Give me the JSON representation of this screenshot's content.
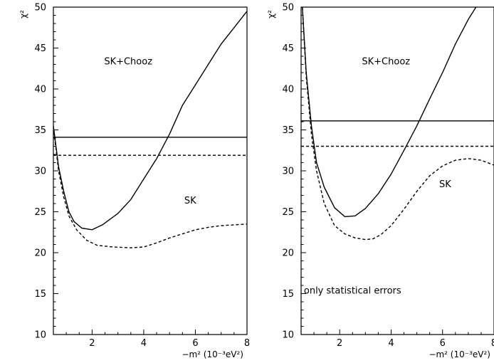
{
  "chart_data": [
    {
      "type": "line",
      "title": "",
      "xlabel": "−m² (10⁻³eV²)",
      "ylabel": "χ²",
      "xlim": [
        0.5,
        8
      ],
      "ylim": [
        10,
        50
      ],
      "xticks": [
        2,
        4,
        6,
        8
      ],
      "yticks": [
        10,
        15,
        20,
        25,
        30,
        35,
        40,
        45,
        50
      ],
      "grid": false,
      "annotations": [
        {
          "text": "SK+Chooz",
          "x": 3.4,
          "y": 43.0
        },
        {
          "text": "SK",
          "x": 5.8,
          "y": 26.0
        }
      ],
      "series": [
        {
          "name": "SK+Chooz",
          "style": "solid",
          "points": [
            [
              0.5,
              35.5
            ],
            [
              0.7,
              30.5
            ],
            [
              0.9,
              27.5
            ],
            [
              1.1,
              25.0
            ],
            [
              1.3,
              23.8
            ],
            [
              1.6,
              23.0
            ],
            [
              2.0,
              22.8
            ],
            [
              2.4,
              23.4
            ],
            [
              3.0,
              24.8
            ],
            [
              3.5,
              26.5
            ],
            [
              4.0,
              29.0
            ],
            [
              4.5,
              31.5
            ],
            [
              5.0,
              34.5
            ],
            [
              5.5,
              38.0
            ],
            [
              6.0,
              40.5
            ],
            [
              6.5,
              43.0
            ],
            [
              7.0,
              45.5
            ],
            [
              7.5,
              47.5
            ],
            [
              8.0,
              49.5
            ]
          ]
        },
        {
          "name": "SK",
          "style": "dashed",
          "points": [
            [
              0.5,
              35.3
            ],
            [
              0.7,
              30.0
            ],
            [
              0.9,
              26.8
            ],
            [
              1.1,
              24.5
            ],
            [
              1.4,
              22.8
            ],
            [
              1.8,
              21.5
            ],
            [
              2.2,
              20.9
            ],
            [
              2.8,
              20.7
            ],
            [
              3.5,
              20.6
            ],
            [
              4.0,
              20.7
            ],
            [
              4.5,
              21.2
            ],
            [
              5.0,
              21.8
            ],
            [
              5.5,
              22.3
            ],
            [
              6.0,
              22.8
            ],
            [
              6.5,
              23.1
            ],
            [
              7.0,
              23.3
            ],
            [
              7.5,
              23.4
            ],
            [
              8.0,
              23.5
            ]
          ]
        },
        {
          "name": "",
          "style": "solid",
          "points": [
            [
              0.5,
              34.1
            ],
            [
              8.0,
              34.1
            ]
          ]
        },
        {
          "name": "",
          "style": "dashed",
          "points": [
            [
              0.5,
              31.9
            ],
            [
              8.0,
              31.9
            ]
          ]
        }
      ]
    },
    {
      "type": "line",
      "title": "",
      "xlabel": "−m² (10⁻³eV²)",
      "ylabel": "χ²",
      "xlim": [
        0.5,
        8
      ],
      "ylim": [
        10,
        50
      ],
      "xticks": [
        2,
        4,
        6,
        8
      ],
      "yticks": [
        10,
        15,
        20,
        25,
        30,
        35,
        40,
        45,
        50
      ],
      "grid": false,
      "annotations": [
        {
          "text": "SK+Chooz",
          "x": 3.8,
          "y": 43.0
        },
        {
          "text": "SK",
          "x": 6.1,
          "y": 28.0
        },
        {
          "text": "only statistical errors",
          "x": 2.5,
          "y": 15.0
        }
      ],
      "series": [
        {
          "name": "SK+Chooz",
          "style": "solid",
          "points": [
            [
              0.55,
              50.0
            ],
            [
              0.7,
              42.0
            ],
            [
              0.9,
              35.5
            ],
            [
              1.1,
              31.0
            ],
            [
              1.4,
              28.0
            ],
            [
              1.8,
              25.5
            ],
            [
              2.2,
              24.4
            ],
            [
              2.6,
              24.5
            ],
            [
              3.0,
              25.4
            ],
            [
              3.5,
              27.2
            ],
            [
              4.0,
              29.6
            ],
            [
              4.5,
              32.5
            ],
            [
              5.0,
              35.5
            ],
            [
              5.5,
              38.8
            ],
            [
              6.0,
              42.0
            ],
            [
              6.5,
              45.5
            ],
            [
              7.0,
              48.5
            ],
            [
              7.3,
              50.0
            ]
          ]
        },
        {
          "name": "SK",
          "style": "dashed",
          "points": [
            [
              0.55,
              50.0
            ],
            [
              0.7,
              41.5
            ],
            [
              0.9,
              34.5
            ],
            [
              1.1,
              30.0
            ],
            [
              1.4,
              26.0
            ],
            [
              1.8,
              23.3
            ],
            [
              2.2,
              22.3
            ],
            [
              2.6,
              21.8
            ],
            [
              3.0,
              21.6
            ],
            [
              3.3,
              21.7
            ],
            [
              3.6,
              22.2
            ],
            [
              4.0,
              23.3
            ],
            [
              4.5,
              25.3
            ],
            [
              5.0,
              27.5
            ],
            [
              5.5,
              29.4
            ],
            [
              6.0,
              30.6
            ],
            [
              6.5,
              31.3
            ],
            [
              7.0,
              31.5
            ],
            [
              7.5,
              31.3
            ],
            [
              8.0,
              30.7
            ]
          ]
        },
        {
          "name": "",
          "style": "solid",
          "points": [
            [
              0.5,
              36.1
            ],
            [
              8.0,
              36.1
            ]
          ]
        },
        {
          "name": "",
          "style": "dashed",
          "points": [
            [
              0.5,
              33.0
            ],
            [
              8.0,
              33.0
            ]
          ]
        }
      ]
    }
  ]
}
